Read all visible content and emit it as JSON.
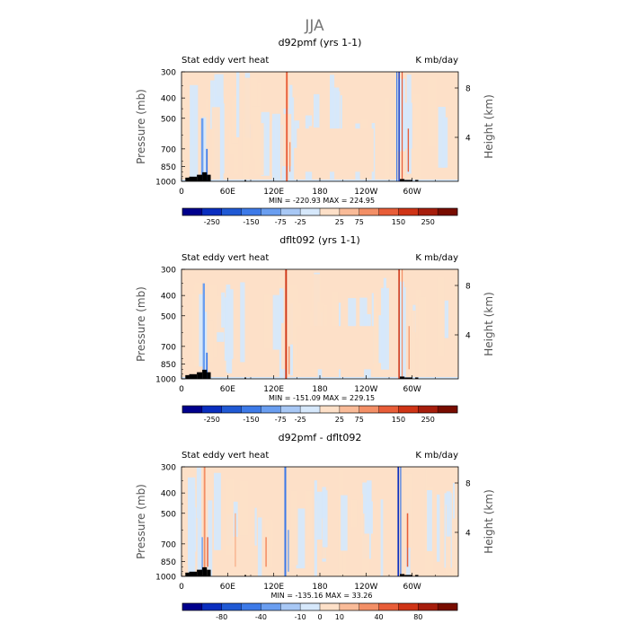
{
  "figure": {
    "title": "JJA"
  },
  "palette": {
    "main": [
      "#00008c",
      "#0a2ebf",
      "#2059d4",
      "#3d7ae8",
      "#6a9ef0",
      "#a8c8f5",
      "#d6e8fb",
      "#fde0c8",
      "#f9bb98",
      "#f38f66",
      "#e85d38",
      "#cf3416",
      "#a61d0c",
      "#780c00"
    ],
    "diff": [
      "#00008c",
      "#0a2ebf",
      "#2059d4",
      "#3d7ae8",
      "#6a9ef0",
      "#a8c8f5",
      "#d6e8fb",
      "#fde0c8",
      "#f9bb98",
      "#f38f66",
      "#e85d38",
      "#cf3416",
      "#a61d0c",
      "#780c00"
    ],
    "terrain": "#000000"
  },
  "chart_data": [
    {
      "type": "heatmap",
      "title": "d92pmf (yrs 1-1)",
      "left_label": "Stat eddy vert heat",
      "right_label": "K mb/day",
      "ylabel": "Pressure (mb)",
      "ylabel_right": "Height (km)",
      "x_ticks": [
        "0",
        "60E",
        "120E",
        "180",
        "120W",
        "60W"
      ],
      "y_ticks": [
        "300",
        "400",
        "500",
        "700",
        "850",
        "1000"
      ],
      "y_ticks_right": [
        "4",
        "8"
      ],
      "stats": "MIN = -220.93   MAX = 224.95",
      "colorbar_labels": [
        "-250",
        "-150",
        "-75",
        "-25",
        "25",
        "75",
        "150",
        "250"
      ],
      "min": -220.93,
      "max": 224.95,
      "contour_levels": [
        -300,
        -250,
        -200,
        -150,
        -100,
        -75,
        -50,
        -25,
        0,
        25,
        50,
        75,
        100,
        150,
        200,
        250,
        300
      ]
    },
    {
      "type": "heatmap",
      "title": "dflt092 (yrs 1-1)",
      "left_label": "Stat eddy vert heat",
      "right_label": "K mb/day",
      "ylabel": "Pressure (mb)",
      "ylabel_right": "Height (km)",
      "x_ticks": [
        "0",
        "60E",
        "120E",
        "180",
        "120W",
        "60W"
      ],
      "y_ticks": [
        "300",
        "400",
        "500",
        "700",
        "850",
        "1000"
      ],
      "y_ticks_right": [
        "4",
        "8"
      ],
      "stats": "MIN = -151.09   MAX = 229.15",
      "colorbar_labels": [
        "-250",
        "-150",
        "-75",
        "-25",
        "25",
        "75",
        "150",
        "250"
      ],
      "min": -151.09,
      "max": 229.15
    },
    {
      "type": "heatmap",
      "title": "d92pmf - dflt092",
      "left_label": "Stat eddy vert heat",
      "right_label": "K mb/day",
      "ylabel": "Pressure (mb)",
      "ylabel_right": "Height (km)",
      "x_ticks": [
        "0",
        "60E",
        "120E",
        "180",
        "120W",
        "60W"
      ],
      "y_ticks": [
        "300",
        "400",
        "500",
        "700",
        "850",
        "1000"
      ],
      "y_ticks_right": [
        "4",
        "8"
      ],
      "stats": "MIN = -135.16   MAX =   33.26",
      "colorbar_labels": [
        "-80",
        "-40",
        "-10",
        "0",
        "10",
        "40",
        "80"
      ],
      "min": -135.16,
      "max": 33.26
    }
  ]
}
